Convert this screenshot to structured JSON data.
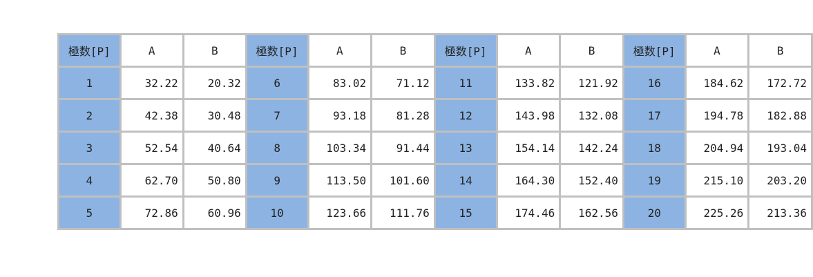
{
  "headers": [
    "極数[P]",
    "A",
    "B",
    "極数[P]",
    "A",
    "B",
    "極数[P]",
    "A",
    "B",
    "極数[P]",
    "A",
    "B"
  ],
  "rows": [
    [
      "1",
      "32.22",
      "20.32",
      "6",
      "83.02",
      "71.12",
      "11",
      "133.82",
      "121.92",
      "16",
      "184.62",
      "172.72"
    ],
    [
      "2",
      "42.38",
      "30.48",
      "7",
      "93.18",
      "81.28",
      "12",
      "143.98",
      "132.08",
      "17",
      "194.78",
      "182.88"
    ],
    [
      "3",
      "52.54",
      "40.64",
      "8",
      "103.34",
      "91.44",
      "13",
      "154.14",
      "142.24",
      "18",
      "204.94",
      "193.04"
    ],
    [
      "4",
      "62.70",
      "50.80",
      "9",
      "113.50",
      "101.60",
      "14",
      "164.30",
      "152.40",
      "19",
      "215.10",
      "203.20"
    ],
    [
      "5",
      "72.86",
      "60.96",
      "10",
      "123.66",
      "111.76",
      "15",
      "174.46",
      "162.56",
      "20",
      "225.26",
      "213.36"
    ]
  ],
  "colors": {
    "header_bg": "#8db3e2",
    "border": "#c0c0c0"
  }
}
